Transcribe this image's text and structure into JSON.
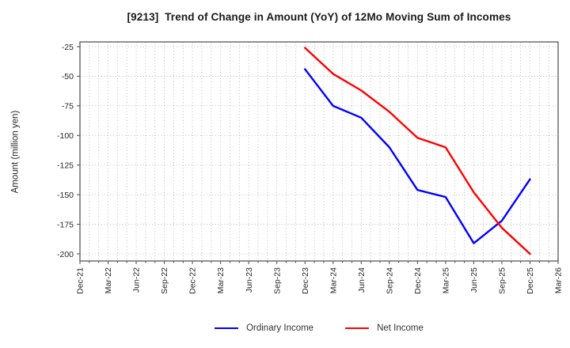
{
  "chart_data": {
    "type": "line",
    "title": "[9213]  Trend of Change in Amount (YoY) of 12Mo Moving Sum of Incomes",
    "ylabel": "Amount (million yen)",
    "x_tick_labels": [
      "Dec-21",
      "Mar-22",
      "Jun-22",
      "Sep-22",
      "Dec-22",
      "Mar-23",
      "Jun-23",
      "Sep-23",
      "Dec-23",
      "Mar-24",
      "Jun-24",
      "Sep-24",
      "Dec-24",
      "Mar-25",
      "Jun-25",
      "Sep-25",
      "Dec-25",
      "Mar-26"
    ],
    "x_total_months": 51,
    "y_ticks": [
      -25,
      -50,
      -75,
      -100,
      -125,
      -150,
      -175,
      -200
    ],
    "ylim": [
      -206,
      -21
    ],
    "grid": "dotted",
    "legend_position": "bottom-center",
    "series": [
      {
        "name": "Ordinary Income",
        "color": "#0000ff",
        "x_months": [
          24,
          27,
          30,
          33,
          36,
          39,
          42,
          45,
          48
        ],
        "x_labels": [
          "Dec-23",
          "Mar-24",
          "Jun-24",
          "Sep-24",
          "Dec-24",
          "Mar-25",
          "Jun-25",
          "Sep-25",
          "Dec-25"
        ],
        "values": [
          -44,
          -75,
          -85,
          -110,
          -146,
          -152,
          -191,
          -172,
          -137
        ]
      },
      {
        "name": "Net Income",
        "color": "#ff0000",
        "x_months": [
          24,
          27,
          30,
          33,
          36,
          39,
          42,
          45,
          48
        ],
        "x_labels": [
          "Dec-23",
          "Mar-24",
          "Jun-24",
          "Sep-24",
          "Dec-24",
          "Mar-25",
          "Jun-25",
          "Sep-25",
          "Dec-25"
        ],
        "values": [
          -26,
          -48,
          -62,
          -80,
          -102,
          -110,
          -148,
          -178,
          -200
        ]
      }
    ],
    "colors": {
      "frame": "#4a4a4a",
      "grid": "#b8b8b8",
      "text": "#262626"
    }
  }
}
